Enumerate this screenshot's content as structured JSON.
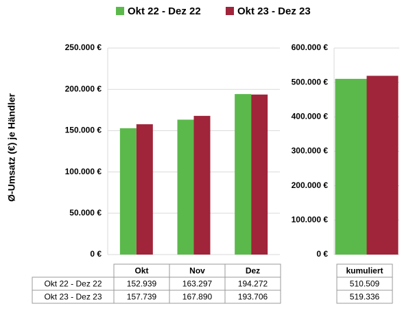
{
  "chart_data": [
    {
      "type": "bar",
      "y_label": "Ø-Umsatz (€) je Händler",
      "categories": [
        "Okt",
        "Nov",
        "Dez"
      ],
      "series": [
        {
          "name": "Okt 22 - Dez 22",
          "color": "#5bb94b",
          "values": [
            152939,
            163297,
            194272
          ],
          "value_labels": [
            "152.939",
            "163.297",
            "194.272"
          ]
        },
        {
          "name": "Okt 23 - Dez 23",
          "color": "#a0243a",
          "values": [
            157739,
            167890,
            193706
          ],
          "value_labels": [
            "157.739",
            "167.890",
            "193.706"
          ]
        }
      ],
      "ylim": [
        0,
        250000
      ],
      "yticks": [
        {
          "value": 0,
          "label": "0 €"
        },
        {
          "value": 50000,
          "label": "50.000 €"
        },
        {
          "value": 100000,
          "label": "100.000 €"
        },
        {
          "value": 150000,
          "label": "150.000 €"
        },
        {
          "value": 200000,
          "label": "200.000 €"
        },
        {
          "value": 250000,
          "label": "250.000 €"
        }
      ],
      "grid": true
    },
    {
      "type": "bar",
      "categories": [
        "kumuliert"
      ],
      "series": [
        {
          "color": "#5bb94b",
          "values": [
            510509
          ],
          "value_labels": [
            "510.509"
          ]
        },
        {
          "color": "#a0243a",
          "values": [
            519336
          ],
          "value_labels": [
            "519.336"
          ]
        }
      ],
      "ylim": [
        0,
        600000
      ],
      "yticks": [
        {
          "value": 0,
          "label": "0 €"
        },
        {
          "value": 100000,
          "label": "100.000 €"
        },
        {
          "value": 200000,
          "label": "200.000 €"
        },
        {
          "value": 300000,
          "label": "300.000 €"
        },
        {
          "value": 400000,
          "label": "400.000 €"
        },
        {
          "value": 500000,
          "label": "500.000 €"
        },
        {
          "value": 600000,
          "label": "600.000 €"
        }
      ],
      "grid": true
    }
  ]
}
